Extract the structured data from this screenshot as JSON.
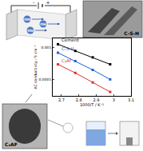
{
  "chart_data": {
    "type": "line",
    "xlabel": "1000/T / K⁻¹",
    "ylabel": "AC conductivity / S cm⁻¹",
    "log": "y",
    "xlim": [
      2.65,
      3.1
    ],
    "xticks": [
      2.7,
      2.8,
      2.9,
      3,
      3.1
    ],
    "ylim": [
      3e-05,
      0.002
    ],
    "yticks": [
      0.0001,
      0.001
    ],
    "marker": "square",
    "series": [
      {
        "name": "Cement",
        "color": "#000000",
        "x": [
          2.68,
          2.78,
          2.88,
          2.98
        ],
        "values": [
          0.0013,
          0.0008,
          0.0005,
          0.0003
        ]
      },
      {
        "name": "C-S-H",
        "color": "#1f5fd6",
        "x": [
          2.68,
          2.78,
          2.88,
          2.98
        ],
        "values": [
          0.0007,
          0.00038,
          0.0002,
          0.0001
        ]
      },
      {
        "name": "C₄AF",
        "color": "#e03030",
        "x": [
          2.68,
          2.78,
          2.88,
          2.98
        ],
        "values": [
          0.0003,
          0.00016,
          8e-05,
          4e-05
        ]
      }
    ]
  },
  "diagram": {
    "cell_signs": [
      "-",
      "+"
    ],
    "ion_labels": [
      "OH",
      "OH",
      "OH"
    ],
    "photo_labels": [
      "C-S-H",
      "C₄AF"
    ]
  }
}
